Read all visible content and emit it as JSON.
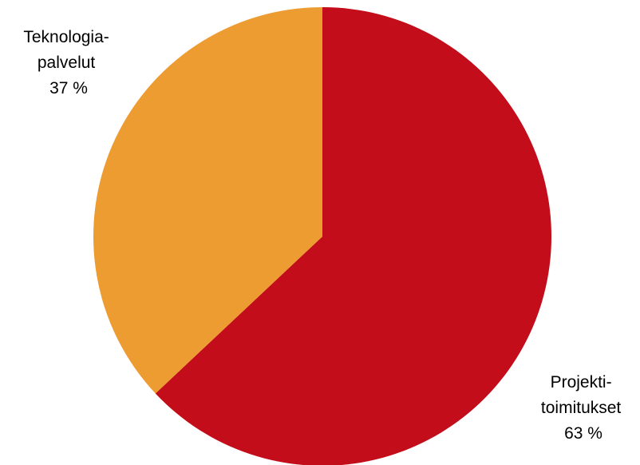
{
  "chart_data": {
    "type": "pie",
    "title": "",
    "slices": [
      {
        "label_lines": [
          "Projekti-",
          "toimitukset"
        ],
        "percent_label": "63 %",
        "value": 63,
        "color": "#C40D1A"
      },
      {
        "label_lines": [
          "Teknologia-",
          "palvelut"
        ],
        "percent_label": "37 %",
        "value": 37,
        "color": "#ED9C32"
      }
    ],
    "start_angle_deg": 0,
    "direction": "clockwise",
    "legend": "none"
  }
}
